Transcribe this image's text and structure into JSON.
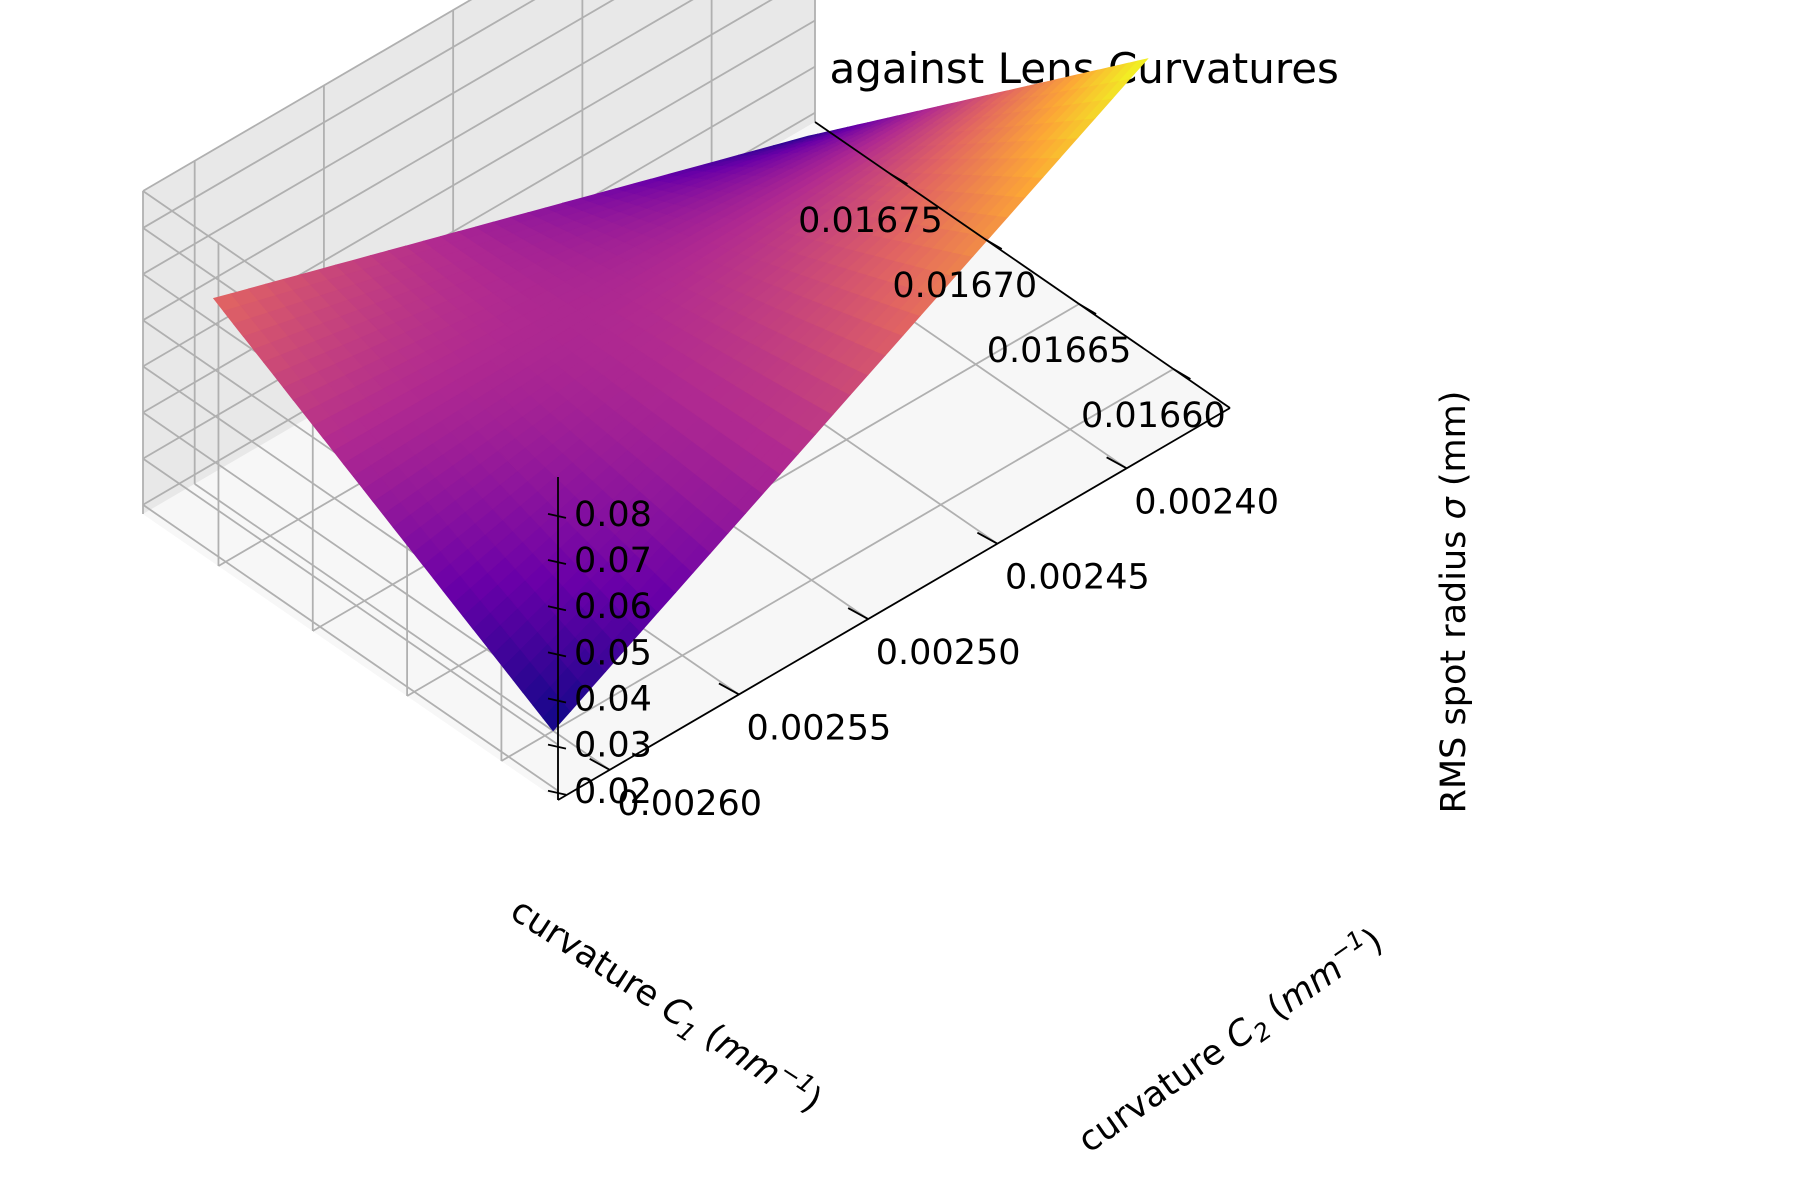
{
  "chart_data": {
    "type": "surface",
    "title": "RMS Spot Radius against Lens Curvatures",
    "x_axis": {
      "label_prefix": "curvature ",
      "symbol": "C",
      "subscript": "1",
      "unit_open": " (",
      "unit_base": "mm",
      "unit_exp": "−1",
      "unit_close": ")",
      "range": [
        0.01657,
        0.01679
      ],
      "ticks": [
        0.0166,
        0.01665,
        0.0167,
        0.01675
      ],
      "tick_labels": [
        "0.01660",
        "0.01665",
        "0.01670",
        "0.01675"
      ]
    },
    "y_axis": {
      "label_prefix": "curvature ",
      "symbol": "C",
      "subscript": "2",
      "unit_open": " (",
      "unit_base": "mm",
      "unit_exp": "−1",
      "unit_close": ")",
      "range": [
        0.00236,
        0.00262
      ],
      "ticks": [
        0.0024,
        0.00245,
        0.0025,
        0.00255,
        0.0026
      ],
      "tick_labels": [
        "0.00240",
        "0.00245",
        "0.00250",
        "0.00255",
        "0.00260"
      ]
    },
    "z_axis": {
      "label_prefix": "RMS spot radius ",
      "symbol": "σ",
      "label_suffix": " (mm)",
      "range": [
        0.018,
        0.088
      ],
      "ticks": [
        0.02,
        0.03,
        0.04,
        0.05,
        0.06,
        0.07,
        0.08
      ],
      "tick_labels": [
        "0.02",
        "0.03",
        "0.04",
        "0.05",
        "0.06",
        "0.07",
        "0.08"
      ]
    },
    "surface": {
      "x_range": [
        0.0166,
        0.01678
      ],
      "y_range": [
        0.00237,
        0.0026
      ],
      "corner_values": {
        "x_min_y_min": 0.0885,
        "x_max_y_min": 0.021,
        "x_min_y_max": 0.018,
        "x_max_y_max": 0.061
      },
      "shape": "valley along line from (x_max, y_min) to (x_min, y_max); saddle-like rising to two high corners"
    },
    "colormap": "plasma",
    "colormap_stops": [
      "#0d0887",
      "#6a00a8",
      "#b12a90",
      "#e16462",
      "#fca636",
      "#f0f921"
    ],
    "grid": true,
    "pane_color": "#f2f2f2"
  }
}
